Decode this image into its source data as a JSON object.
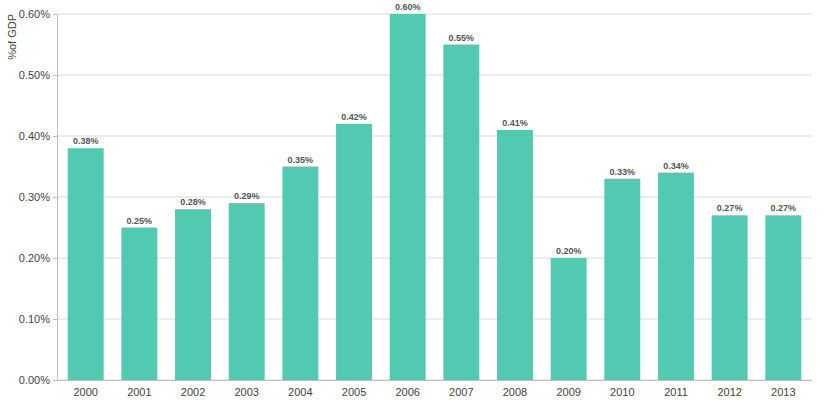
{
  "chart_data": {
    "type": "bar",
    "y_label": "%of GDP",
    "categories": [
      "2000",
      "2001",
      "2002",
      "2003",
      "2004",
      "2005",
      "2006",
      "2007",
      "2008",
      "2009",
      "2010",
      "2011",
      "2012",
      "2013"
    ],
    "values": [
      0.38,
      0.25,
      0.28,
      0.29,
      0.35,
      0.42,
      0.6,
      0.55,
      0.41,
      0.2,
      0.33,
      0.34,
      0.27,
      0.27
    ],
    "value_labels": [
      "0.38%",
      "0.25%",
      "0.28%",
      "0.29%",
      "0.35%",
      "0.42%",
      "0.60%",
      "0.55%",
      "0.41%",
      "0.20%",
      "0.33%",
      "0.34%",
      "0.27%",
      "0.27%"
    ],
    "color": "#52c9b1",
    "ylim": [
      0,
      0.6
    ],
    "yticks": [
      {
        "value": 0,
        "label": "0.00%"
      },
      {
        "value": 0.1,
        "label": "0.10%"
      },
      {
        "value": 0.2,
        "label": "0.20%"
      },
      {
        "value": 0.3,
        "label": "0.30%"
      },
      {
        "value": 0.4,
        "label": "0.40%"
      },
      {
        "value": 0.5,
        "label": "0.50%"
      },
      {
        "value": 0.6,
        "label": "0.60%"
      }
    ],
    "grid": true,
    "data_labels": true
  }
}
